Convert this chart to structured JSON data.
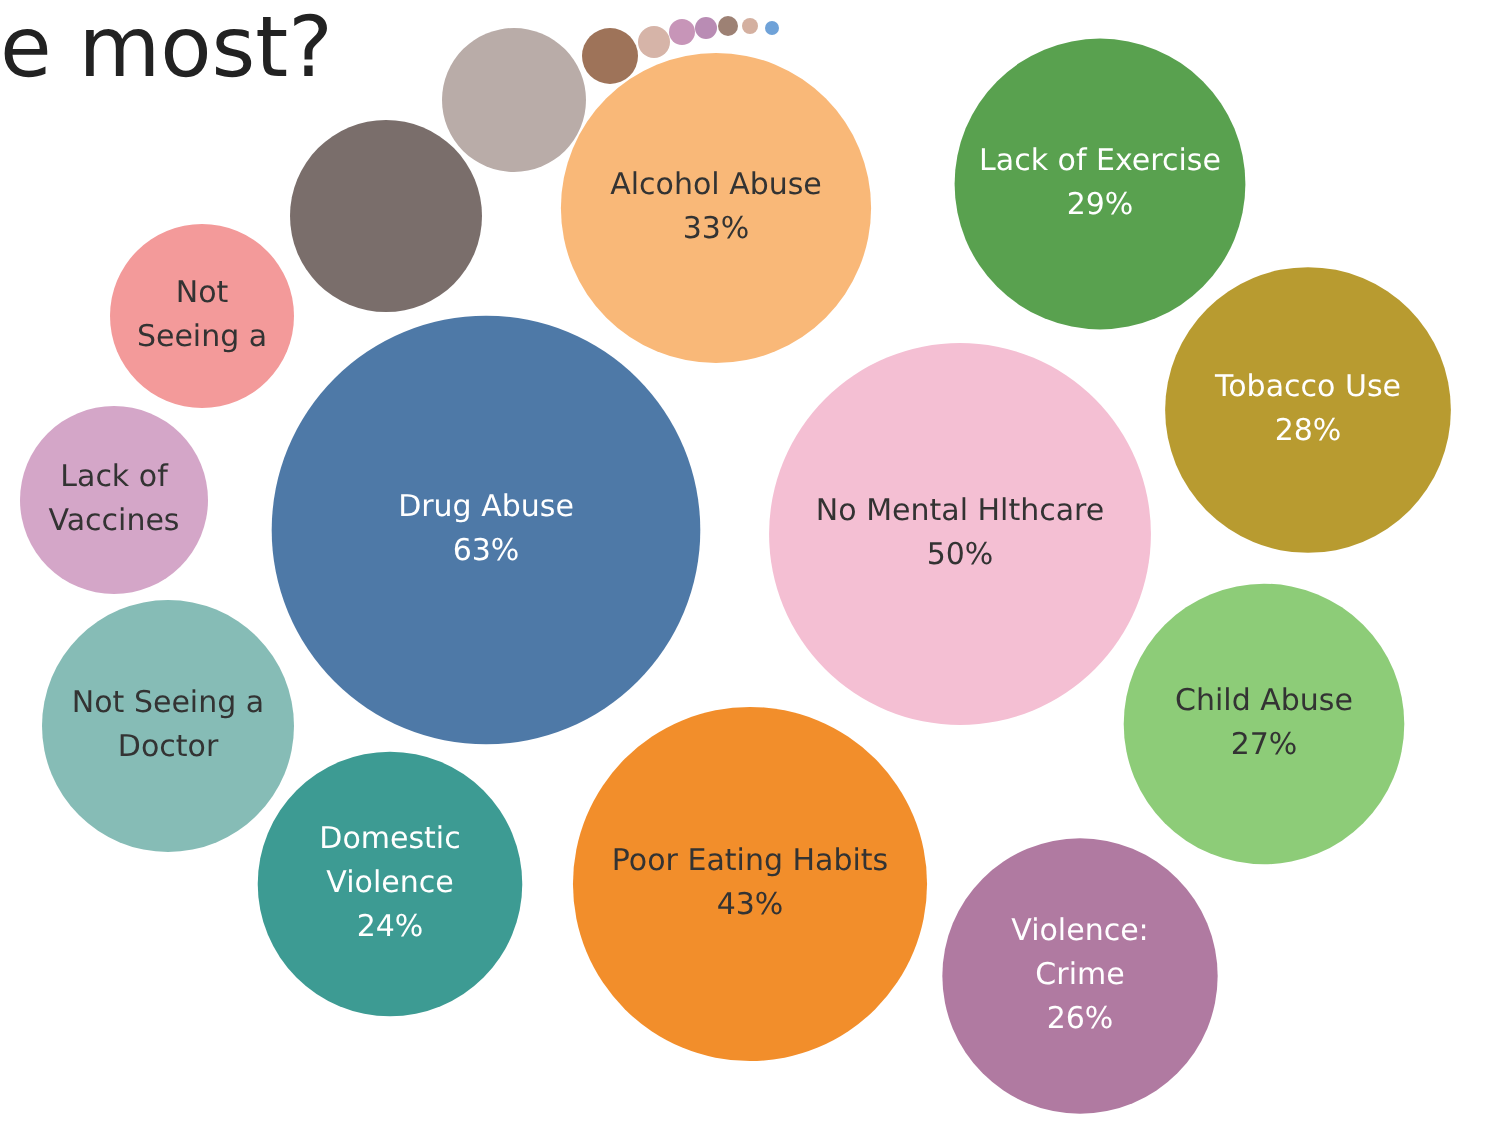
{
  "chart_data": {
    "type": "other",
    "title": "e most?",
    "categories": [
      "Drug Abuse",
      "No Mental Hlthcare",
      "Poor Eating Habits",
      "Alcohol Abuse",
      "Lack of Exercise",
      "Tobacco Use",
      "Child Abuse",
      "Violence: Crime",
      "Domestic Violence",
      "Not Seeing a Doctor",
      "Lack of Vaccines",
      "Not Seeing a",
      null,
      null,
      null,
      null,
      null,
      null,
      null,
      null,
      null
    ],
    "values": [
      63,
      50,
      43,
      33,
      29,
      28,
      27,
      26,
      24,
      null,
      null,
      null,
      null,
      null,
      null,
      null,
      null,
      null,
      null,
      null,
      null
    ],
    "value_labels": [
      "63%",
      "50%",
      "43%",
      "33%",
      "29%",
      "28%",
      "27%",
      "26%",
      "24%",
      null,
      null,
      null,
      null,
      null,
      null,
      null,
      null,
      null,
      null,
      null,
      null
    ],
    "colors": [
      "#4e79a7",
      "#f4bfd3",
      "#f28e2b",
      "#f9b878",
      "#59a14f",
      "#b89b30",
      "#8dcc78",
      "#b07aa1",
      "#3d9b93",
      "#86bcb6",
      "#d4a6c8",
      "#f39a9a",
      "#7a6e6b",
      "#b9aca8",
      "#9e7359",
      "#d6b4a8",
      "#c795b8",
      "#b98cb4",
      "#9d8174",
      "#d4b0a0",
      "#6fa2d8"
    ]
  }
}
